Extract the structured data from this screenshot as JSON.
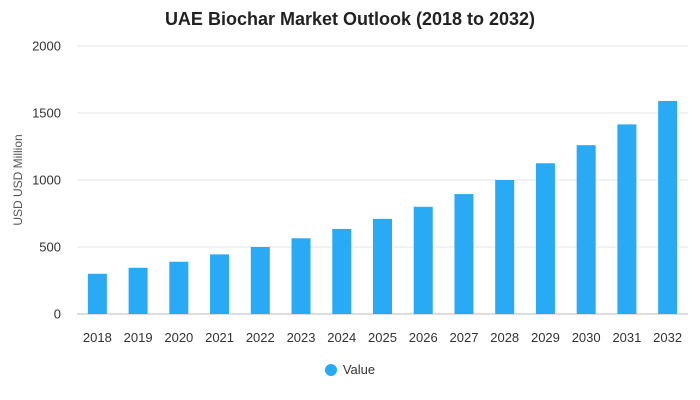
{
  "chart_data": {
    "type": "bar",
    "title": "UAE Biochar Market Outlook (2018 to 2032)",
    "xlabel": "",
    "ylabel": "USD USD Million",
    "ylim": [
      0,
      2000
    ],
    "yticks": [
      0,
      500,
      1000,
      1500,
      2000
    ],
    "categories": [
      "2018",
      "2019",
      "2020",
      "2021",
      "2022",
      "2023",
      "2024",
      "2025",
      "2026",
      "2027",
      "2028",
      "2029",
      "2030",
      "2031",
      "2032"
    ],
    "series": [
      {
        "name": "Value",
        "color": "#29aaf4",
        "values": [
          300,
          345,
          390,
          445,
          500,
          565,
          635,
          710,
          800,
          895,
          1000,
          1125,
          1260,
          1415,
          1590
        ]
      }
    ],
    "grid": true,
    "legend_position": "bottom"
  }
}
